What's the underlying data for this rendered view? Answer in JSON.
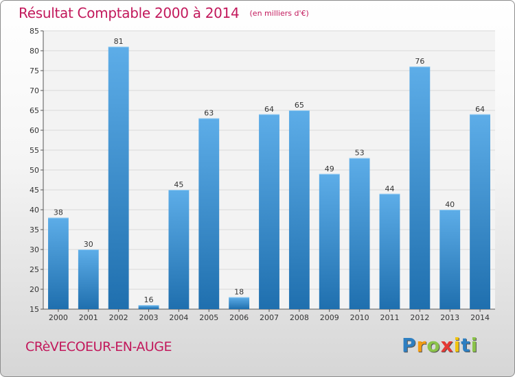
{
  "header": {
    "title": "Résultat Comptable 2000 à 2014",
    "subtitle": "(en milliers d'€)"
  },
  "footer": {
    "commune": "CRèVECOEUR-EN-AUGE",
    "logo_letters": [
      "P",
      "r",
      "o",
      "x",
      "i",
      "t",
      "i"
    ],
    "logo_colors": [
      "#2e7fc1",
      "#f39c12",
      "#8bc34a",
      "#e53935",
      "#f1c40f",
      "#2e7fc1",
      "#8bc34a"
    ]
  },
  "colors": {
    "bar_top": "#5dade8",
    "bar_bottom": "#1f6fae",
    "accent": "#c2185b"
  },
  "chart_data": {
    "type": "bar",
    "categories": [
      "2000",
      "2001",
      "2002",
      "2003",
      "2004",
      "2005",
      "2006",
      "2007",
      "2008",
      "2009",
      "2010",
      "2011",
      "2012",
      "2013",
      "2014"
    ],
    "values": [
      38,
      30,
      81,
      16,
      45,
      63,
      18,
      64,
      65,
      49,
      53,
      44,
      76,
      40,
      64
    ],
    "ylim": [
      15,
      85
    ],
    "yticks": [
      15,
      20,
      25,
      30,
      35,
      40,
      45,
      50,
      55,
      60,
      65,
      70,
      75,
      80,
      85
    ],
    "grid": true,
    "xlabel": "",
    "ylabel": ""
  }
}
